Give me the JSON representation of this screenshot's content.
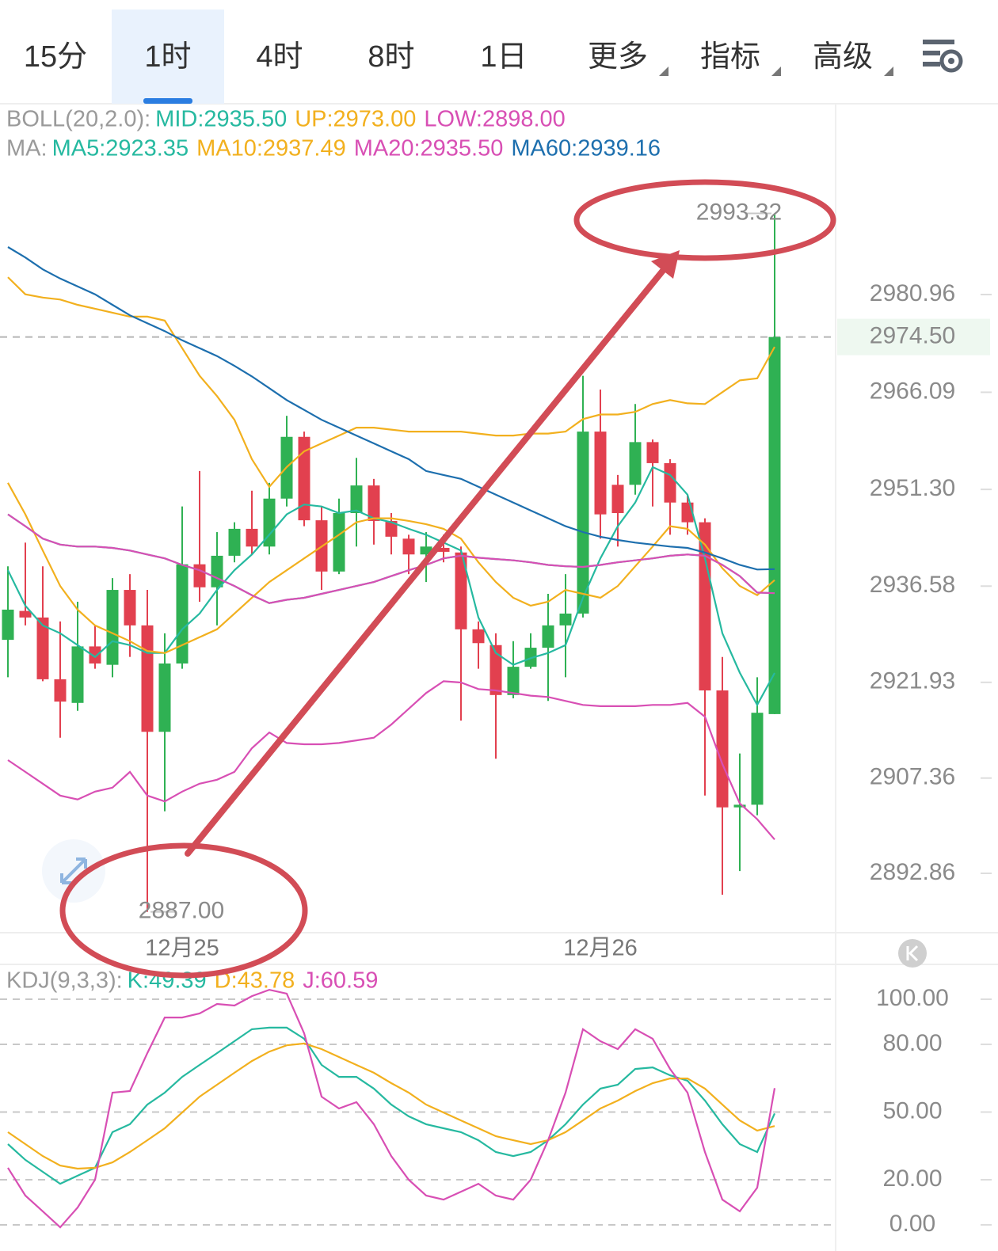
{
  "tabs": [
    "15分",
    "1时",
    "4时",
    "8时",
    "1日",
    "更多",
    "指标",
    "高级"
  ],
  "active_tab": 1,
  "chart_data": [
    {
      "type": "candlestick",
      "legend_rows": [
        "BOLL(20,2.0):",
        "MA:"
      ],
      "categories": [
        null,
        null,
        null,
        null,
        null,
        null,
        null,
        null,
        null,
        null,
        "12月25",
        null,
        null,
        null,
        null,
        null,
        null,
        null,
        null,
        null,
        null,
        null,
        null,
        null,
        null,
        null,
        null,
        null,
        null,
        null,
        null,
        null,
        null,
        null,
        "12月26",
        null,
        null,
        null,
        null,
        null,
        null,
        null,
        null,
        null,
        null
      ],
      "open": [
        2928.4,
        2932.8,
        2931.8,
        2922.4,
        2918.8,
        2927.4,
        2924.6,
        2936.0,
        2930.6,
        2914.4,
        2924.8,
        2939.9,
        2936.4,
        2941.2,
        2945.3,
        2942.6,
        2949.9,
        2959.3,
        2946.6,
        2938.8,
        2947.7,
        2951.9,
        2946.5,
        2943.8,
        2941.4,
        2942.4,
        2941.7,
        2930.0,
        2927.6,
        2920.0,
        2924.3,
        2927.2,
        2930.6,
        2932.4,
        2960.1,
        2952.0,
        2952.0,
        2958.5,
        2955.3,
        2949.3,
        2946.3,
        2920.7,
        2902.9,
        2903.3,
        2917.1
      ],
      "high": [
        2939.6,
        2943.2,
        2939.6,
        2931.2,
        2934.2,
        2930.6,
        2937.8,
        2938.4,
        2936.0,
        2929.4,
        2948.7,
        2954.1,
        2944.8,
        2946.3,
        2951.1,
        2952.3,
        2962.5,
        2960.1,
        2948.7,
        2949.9,
        2956.1,
        2952.9,
        2947.7,
        2944.4,
        2944.8,
        2944.4,
        2942.6,
        2931.2,
        2929.4,
        2928.2,
        2929.4,
        2935.4,
        2938.4,
        2968.6,
        2966.5,
        2953.5,
        2964.3,
        2958.9,
        2955.9,
        2950.5,
        2946.9,
        2925.8,
        2911.1,
        2922.7,
        2993.32
      ],
      "low": [
        2922.7,
        2930.6,
        2922.1,
        2913.5,
        2917.6,
        2924.0,
        2922.7,
        2925.8,
        2887.0,
        2902.3,
        2924.0,
        2934.2,
        2930.6,
        2940.2,
        2941.4,
        2941.4,
        2948.7,
        2945.7,
        2936.0,
        2938.4,
        2942.6,
        2942.9,
        2941.4,
        2938.4,
        2937.2,
        2940.2,
        2916.1,
        2924.0,
        2910.3,
        2919.5,
        2924.0,
        2919.1,
        2922.7,
        2931.8,
        2943.8,
        2942.6,
        2950.5,
        2948.7,
        2944.4,
        2944.4,
        2904.7,
        2889.6,
        2893.2,
        2901.7,
        2917.1
      ],
      "close": [
        2933.0,
        2931.8,
        2922.4,
        2919.0,
        2927.4,
        2924.8,
        2936.0,
        2930.6,
        2914.4,
        2924.8,
        2939.9,
        2936.4,
        2941.2,
        2945.3,
        2942.6,
        2949.9,
        2959.3,
        2946.6,
        2938.8,
        2947.7,
        2951.9,
        2946.5,
        2944.1,
        2941.4,
        2942.6,
        2941.8,
        2930.0,
        2927.9,
        2920.0,
        2924.3,
        2927.2,
        2930.6,
        2932.4,
        2960.1,
        2947.5,
        2947.7,
        2958.5,
        2955.3,
        2949.3,
        2946.3,
        2920.7,
        2902.9,
        2903.3,
        2917.3,
        2974.5
      ],
      "up_color": "#2fb153",
      "down_color": "#e2404f",
      "series": [
        {
          "name": "MID:2935.50",
          "row": 0,
          "color": "#26b9a0",
          "values": [
            2947.5,
            2945.7,
            2943.8,
            2942.9,
            2942.6,
            2942.6,
            2942.4,
            2942.0,
            2941.4,
            2940.8,
            2939.8,
            2939.0,
            2937.8,
            2936.6,
            2935.2,
            2934.0,
            2934.5,
            2934.8,
            2935.4,
            2936.0,
            2936.6,
            2937.2,
            2938.1,
            2939.0,
            2939.8,
            2940.8,
            2941.2,
            2940.9,
            2940.7,
            2940.5,
            2940.2,
            2939.8,
            2939.6,
            2939.5,
            2939.8,
            2940.2,
            2940.5,
            2940.8,
            2941.2,
            2941.4,
            2941.2,
            2939.8,
            2938.1,
            2935.6,
            2935.5
          ]
        },
        {
          "name": "UP:2973.00",
          "row": 0,
          "color": "#f2b01e",
          "values": [
            2983.6,
            2981.0,
            2980.5,
            2980.2,
            2979.4,
            2978.8,
            2978.2,
            2977.6,
            2977.6,
            2977.0,
            2972.8,
            2968.6,
            2965.5,
            2961.9,
            2955.9,
            2951.7,
            2954.7,
            2957.1,
            2958.3,
            2959.5,
            2960.7,
            2960.7,
            2960.4,
            2960.1,
            2960.1,
            2960.1,
            2960.1,
            2959.8,
            2959.5,
            2959.5,
            2959.8,
            2959.8,
            2960.1,
            2962.0,
            2962.7,
            2962.7,
            2963.1,
            2964.3,
            2964.9,
            2964.4,
            2964.3,
            2966.1,
            2967.9,
            2968.2,
            2973.0
          ]
        },
        {
          "name": "LOW:2898.00",
          "row": 0,
          "color": "#d84fb4",
          "values": [
            2910.1,
            2908.3,
            2906.5,
            2904.7,
            2904.1,
            2905.3,
            2905.9,
            2908.3,
            2904.7,
            2903.8,
            2905.3,
            2906.5,
            2907.1,
            2908.3,
            2911.9,
            2914.3,
            2912.7,
            2912.5,
            2912.5,
            2912.7,
            2913.1,
            2913.5,
            2915.5,
            2917.9,
            2920.3,
            2922.1,
            2921.9,
            2920.9,
            2920.7,
            2920.3,
            2919.9,
            2919.7,
            2919.1,
            2918.5,
            2918.3,
            2918.3,
            2918.3,
            2918.5,
            2918.5,
            2918.8,
            2916.7,
            2909.5,
            2903.5,
            2901.1,
            2898.0
          ]
        },
        {
          "name": "MA5:2923.35",
          "row": 1,
          "color": "#26b9a0",
          "values": [
            2939.0,
            2933.6,
            2930.6,
            2929.4,
            2927.6,
            2925.8,
            2928.2,
            2927.6,
            2926.4,
            2926.4,
            2930.0,
            2932.4,
            2936.0,
            2939.0,
            2941.4,
            2944.4,
            2947.5,
            2949.0,
            2948.7,
            2947.7,
            2948.1,
            2946.9,
            2946.3,
            2945.3,
            2944.4,
            2943.2,
            2942.0,
            2931.8,
            2926.4,
            2924.6,
            2925.6,
            2926.4,
            2927.6,
            2934.8,
            2940.8,
            2945.7,
            2949.3,
            2954.7,
            2953.5,
            2950.5,
            2940.8,
            2929.4,
            2923.4,
            2918.5,
            2923.35
          ]
        },
        {
          "name": "MA10:2937.49",
          "row": 1,
          "color": "#f2b01e",
          "values": [
            2952.3,
            2947.5,
            2942.0,
            2936.6,
            2933.0,
            2930.6,
            2929.4,
            2928.2,
            2926.7,
            2926.4,
            2927.6,
            2928.8,
            2930.0,
            2932.4,
            2934.8,
            2937.2,
            2939.0,
            2940.8,
            2942.6,
            2944.4,
            2946.3,
            2946.9,
            2946.9,
            2946.5,
            2946.0,
            2945.3,
            2943.8,
            2940.2,
            2937.2,
            2934.8,
            2933.6,
            2934.2,
            2936.0,
            2935.4,
            2934.8,
            2936.6,
            2939.6,
            2942.6,
            2945.7,
            2945.3,
            2942.9,
            2939.3,
            2936.6,
            2935.2,
            2937.49
          ]
        },
        {
          "name": "MA20:2935.50",
          "row": 1,
          "color": "#d84fb4",
          "values": [
            2947.5,
            2945.7,
            2943.8,
            2942.9,
            2942.6,
            2942.6,
            2942.4,
            2942.0,
            2941.4,
            2940.8,
            2939.8,
            2939.0,
            2937.8,
            2936.6,
            2935.2,
            2934.0,
            2934.5,
            2934.8,
            2935.4,
            2936.0,
            2936.6,
            2937.2,
            2938.1,
            2939.0,
            2939.8,
            2940.8,
            2941.2,
            2940.9,
            2940.7,
            2940.5,
            2940.2,
            2939.8,
            2939.6,
            2939.5,
            2939.8,
            2940.2,
            2940.5,
            2940.8,
            2941.2,
            2941.4,
            2941.2,
            2939.8,
            2938.1,
            2935.6,
            2935.5
          ]
        },
        {
          "name": "MA60:2939.16",
          "row": 1,
          "color": "#1d6fae",
          "values": [
            2988.2,
            2986.6,
            2984.8,
            2983.4,
            2982.2,
            2981.0,
            2979.4,
            2977.8,
            2976.6,
            2975.4,
            2974.0,
            2972.8,
            2971.6,
            2970.1,
            2968.5,
            2966.7,
            2964.9,
            2963.4,
            2961.9,
            2960.7,
            2959.5,
            2958.3,
            2957.1,
            2955.9,
            2954.1,
            2953.5,
            2952.9,
            2951.7,
            2950.5,
            2949.3,
            2948.1,
            2946.9,
            2945.7,
            2944.8,
            2944.1,
            2943.6,
            2943.2,
            2942.9,
            2942.6,
            2942.4,
            2941.7,
            2940.8,
            2939.8,
            2939.1,
            2939.16
          ]
        }
      ],
      "ylim": [
        2883.82,
        2998.68
      ],
      "yticks": [
        2892.86,
        2907.36,
        2921.93,
        2936.58,
        {
          "value": 2951.3,
          "label": "2951.30"
        },
        2966.09,
        2980.96
      ],
      "last_price": {
        "value": 2974.5,
        "label": "2974.50"
      },
      "high_annotation": 2993.32,
      "low_annotation": {
        "value": 2887,
        "label": "2887.00"
      }
    },
    {
      "type": "line",
      "legend_rows": [
        "KDJ(9,3,3):"
      ],
      "series": [
        {
          "name": "K:49.39",
          "row": 0,
          "color": "#26b9a0",
          "values": [
            35.8,
            28.8,
            23.5,
            18.2,
            21.8,
            25.3,
            41.1,
            44.6,
            53.3,
            58.6,
            65.6,
            70.9,
            76.1,
            81.4,
            86.7,
            87.4,
            87.4,
            82.5,
            70.9,
            65.6,
            65.6,
            60.4,
            53.3,
            48.1,
            44.6,
            42.8,
            41.1,
            37.5,
            32.3,
            30.5,
            32.3,
            37.5,
            44.6,
            53.3,
            60.4,
            62.1,
            69.1,
            69.8,
            66.3,
            63.9,
            55.1,
            44.6,
            35.8,
            32.3,
            49.39
          ]
        },
        {
          "name": "D:43.78",
          "row": 0,
          "color": "#f2b01e",
          "values": [
            41.1,
            35.8,
            30.5,
            26.3,
            24.9,
            25.3,
            27.7,
            32.3,
            37.5,
            42.8,
            49.8,
            56.8,
            62.1,
            67.4,
            72.6,
            76.8,
            79.6,
            80.4,
            77.9,
            74.4,
            70.9,
            67.4,
            62.8,
            58.6,
            53.3,
            49.8,
            46.3,
            42.8,
            39.3,
            37.5,
            35.8,
            37.5,
            41.1,
            46.3,
            51.6,
            55.1,
            59.3,
            62.8,
            64.9,
            64.9,
            60.4,
            53.3,
            46.3,
            41.8,
            43.78
          ]
        },
        {
          "name": "J:60.59",
          "row": 0,
          "color": "#d84fb4",
          "values": [
            25.3,
            13.0,
            6.0,
            -1.1,
            7.7,
            20.0,
            58.6,
            59.3,
            76.1,
            91.9,
            91.9,
            93.7,
            97.9,
            97.2,
            101.4,
            104.2,
            102.5,
            84.9,
            56.8,
            51.6,
            54.4,
            44.6,
            30.5,
            20.0,
            13.0,
            11.2,
            14.7,
            18.2,
            13.0,
            11.2,
            20.0,
            37.5,
            58.6,
            86.7,
            81.4,
            77.9,
            86.7,
            82.5,
            69.1,
            58.6,
            32.3,
            11.2,
            6.0,
            16.5,
            60.59
          ]
        }
      ],
      "ylim": [
        -11.58,
        113.0
      ],
      "yticks": [
        {
          "value": 100,
          "label": "100.00"
        },
        {
          "value": 80,
          "label": "80.00"
        },
        {
          "value": 50,
          "label": "50.00"
        },
        {
          "value": 20,
          "label": "20.00"
        },
        {
          "value": 0,
          "label": "0.00"
        }
      ],
      "grid": true
    }
  ]
}
